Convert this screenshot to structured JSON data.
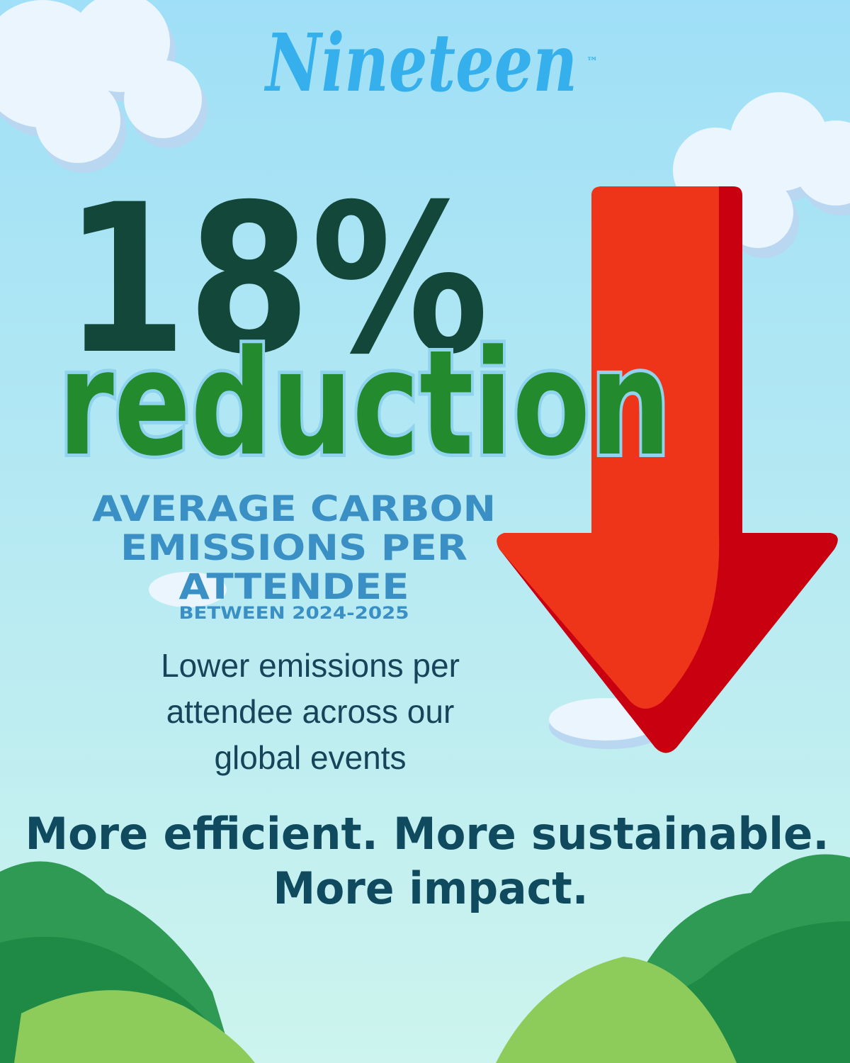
{
  "logo": {
    "name": "Nineteen",
    "trademark": "™"
  },
  "headline": {
    "figure": "18%",
    "word": "reduction"
  },
  "subtitle": {
    "lines": [
      "AVERAGE CARBON",
      "EMISSIONS PER",
      "ATTENDEE"
    ],
    "period": "BETWEEN 2024-2025"
  },
  "body": {
    "lines": [
      "Lower emissions per",
      "attendee across our",
      "global events"
    ]
  },
  "tagline": {
    "lines": [
      "More efficient. More sustainable.",
      "More impact."
    ]
  }
}
